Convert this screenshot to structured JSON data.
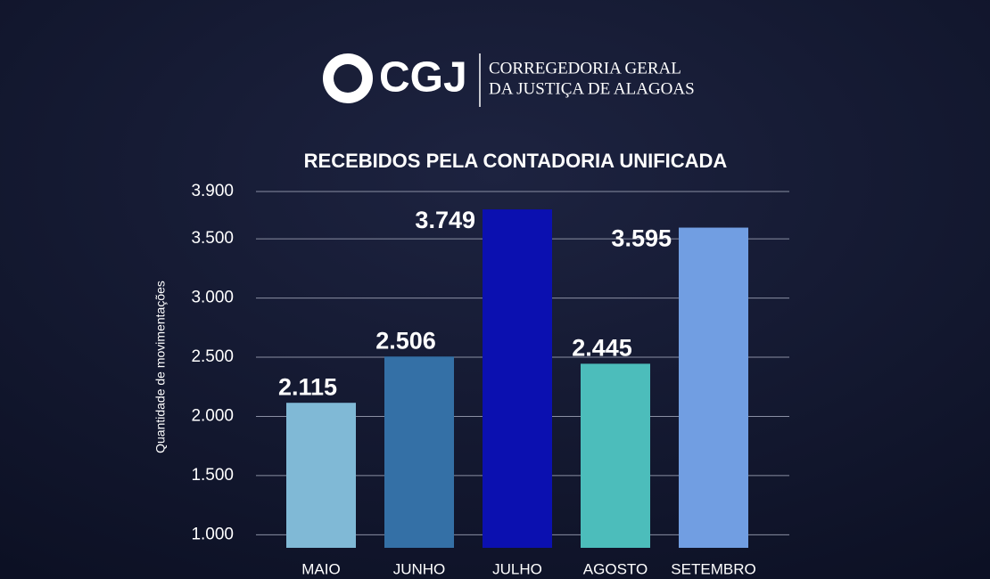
{
  "header": {
    "logo": "CGJ",
    "line1": "CORREGEDORIA GERAL",
    "line2": "DA JUSTIÇA DE ALAGOAS"
  },
  "chart_data": {
    "type": "bar",
    "title": "RECEBIDOS PELA CONTADORIA UNIFICADA",
    "y_label": "Quantidade de movimentações",
    "categories": [
      "MAIO",
      "JUNHO",
      "JULHO",
      "AGOSTO",
      "SETEMBRO"
    ],
    "values": [
      2115,
      2506,
      3749,
      2445,
      3595
    ],
    "value_labels": [
      "2.115",
      "2.506",
      "3.749",
      "2.445",
      "3.595"
    ],
    "colors": [
      "#80b9d6",
      "#3470a6",
      "#0b10b0",
      "#4cbdbb",
      "#719ee2"
    ],
    "ylim": [
      890,
      3900
    ],
    "yticks": [
      {
        "value": 1000,
        "label": "1.000"
      },
      {
        "value": 1500,
        "label": "1.500"
      },
      {
        "value": 2000,
        "label": "2.000"
      },
      {
        "value": 2500,
        "label": "2.500"
      },
      {
        "value": 3000,
        "label": "3.000"
      },
      {
        "value": 3500,
        "label": "3.500"
      },
      {
        "value": 3900,
        "label": "3.900"
      }
    ],
    "grid": true
  }
}
